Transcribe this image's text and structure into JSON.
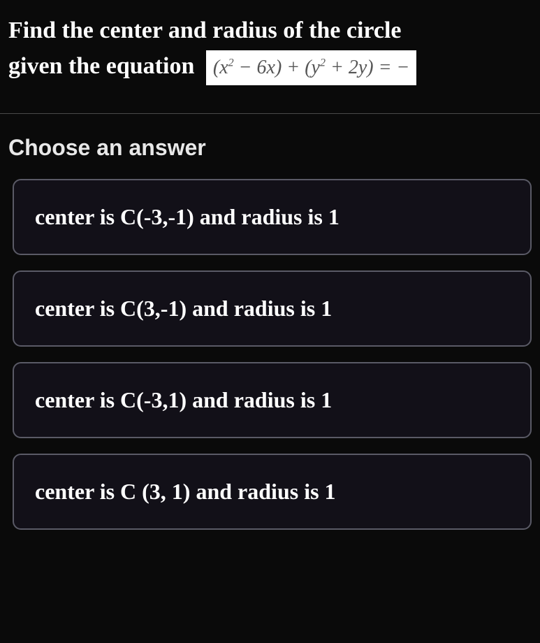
{
  "question": {
    "line1": "Find the center and radius of the circle",
    "line2_prefix": "given the equation",
    "equation_html": "(<i>x</i><sup>2</sup> − 6<i>x</i>) + (<i>y</i><sup>2</sup> + 2<i>y</i>) = −",
    "equation_bg": "#ffffff",
    "equation_fg": "#555555"
  },
  "choose_label": "Choose an answer",
  "answers": [
    {
      "text": "center is C(-3,-1) and radius is 1"
    },
    {
      "text": "center is C(3,-1) and radius is 1"
    },
    {
      "text": "center is C(-3,1) and radius is 1"
    },
    {
      "text": "center is C (3, 1) and radius is 1"
    }
  ],
  "styling": {
    "background_color": "#0a0a0a",
    "text_color": "#ffffff",
    "option_border_color": "#5a5a66",
    "option_bg_color": "#121018",
    "option_border_radius": 12,
    "divider_color": "#4a4a4a",
    "question_fontsize": 34,
    "choose_fontsize": 32,
    "answer_fontsize": 32
  }
}
